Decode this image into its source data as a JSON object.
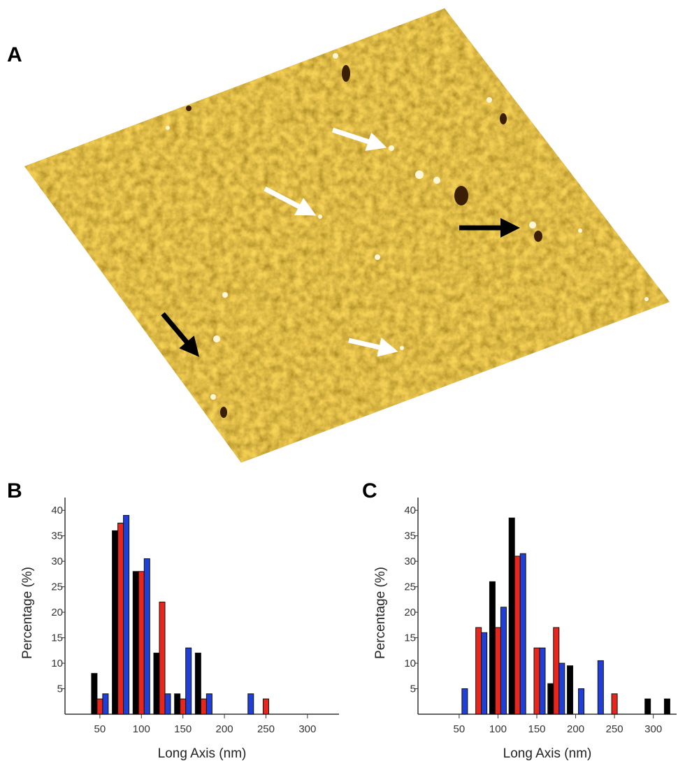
{
  "panel_labels": [
    "A",
    "B",
    "C"
  ],
  "chart_data": [
    {
      "type": "bar",
      "xlabel": "Long Axis (nm)",
      "ylabel": "Percentage (%)",
      "x": [
        50,
        75,
        100,
        125,
        150,
        175,
        200,
        225,
        250
      ],
      "series": [
        {
          "color": "#000000",
          "values": [
            8,
            36,
            28,
            12,
            4,
            12,
            null,
            null,
            null
          ]
        },
        {
          "color": "#e8261c",
          "values": [
            3,
            37.5,
            28,
            22,
            3,
            3,
            null,
            null,
            3
          ]
        },
        {
          "color": "#1f3fd6",
          "values": [
            4,
            39,
            30.5,
            4,
            13,
            4,
            null,
            4,
            null
          ]
        }
      ],
      "xlim": [
        8,
        338
      ],
      "xticks": [
        50,
        100,
        150,
        200,
        250,
        300
      ],
      "ylim": [
        0,
        42.5
      ],
      "yticks": [
        5,
        10,
        15,
        20,
        25,
        30,
        35,
        40
      ]
    },
    {
      "type": "bar",
      "xlabel": "Long Axis (nm)",
      "ylabel": "Percentage (%)",
      "x": [
        50,
        75,
        100,
        125,
        150,
        175,
        200,
        225,
        250,
        300,
        325
      ],
      "series": [
        {
          "color": "#000000",
          "values": [
            null,
            null,
            26,
            38.5,
            null,
            6,
            9.5,
            null,
            null,
            3,
            3
          ]
        },
        {
          "color": "#e8261c",
          "values": [
            null,
            17,
            17,
            31,
            13,
            17,
            null,
            null,
            4,
            null,
            null
          ]
        },
        {
          "color": "#1f3fd6",
          "values": [
            5,
            16,
            21,
            31.5,
            13,
            10,
            5,
            10.5,
            null,
            null,
            null
          ]
        }
      ],
      "xlim": [
        -3,
        330
      ],
      "xticks": [
        50,
        100,
        150,
        200,
        250,
        300
      ],
      "ylim": [
        0,
        42.5
      ],
      "yticks": [
        5,
        10,
        15,
        20,
        25,
        30,
        35,
        40
      ]
    }
  ]
}
